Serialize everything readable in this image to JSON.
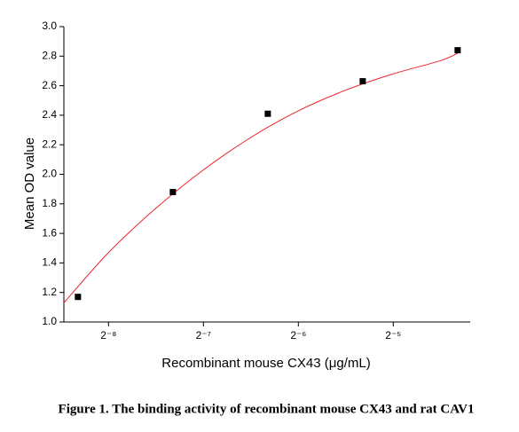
{
  "chart_data": {
    "type": "scatter",
    "caption": "Figure 1. The binding activity of recombinant mouse CX43 and rat CAV1",
    "xlabel": "Recombinant mouse CX43 (μg/mL)",
    "ylabel": "Mean OD value",
    "xscale": "log",
    "xbase": 2,
    "xlim": [
      0.00282,
      0.0548
    ],
    "xticks": [
      {
        "value": 0.00390625,
        "label": "2⁻⁸"
      },
      {
        "value": 0.0078125,
        "label": "2⁻⁷"
      },
      {
        "value": 0.015625,
        "label": "2⁻⁶"
      },
      {
        "value": 0.03125,
        "label": "2⁻⁵"
      }
    ],
    "ylim": [
      1.0,
      3.0
    ],
    "yticks": [
      {
        "value": 1.0,
        "label": "1.0"
      },
      1.2,
      1.4,
      1.6,
      1.8,
      {
        "value": 2.0,
        "label": "2.0"
      },
      2.2,
      2.4,
      2.6,
      2.8,
      {
        "value": 3.0,
        "label": "3.0"
      }
    ],
    "x": [
      0.003125,
      0.00625,
      0.0125,
      0.025,
      0.05
    ],
    "values": [
      1.17,
      1.88,
      2.41,
      2.63,
      2.84
    ],
    "color": "#000000",
    "fit": {
      "color": "#e8242c",
      "x": [
        0.00282,
        0.00390625,
        0.00552,
        0.0078125,
        0.01105,
        0.015625,
        0.0221,
        0.03125,
        0.0442,
        0.05
      ],
      "values": [
        1.13,
        1.47,
        1.77,
        2.03,
        2.25,
        2.43,
        2.57,
        2.68,
        2.77,
        2.82
      ]
    }
  }
}
